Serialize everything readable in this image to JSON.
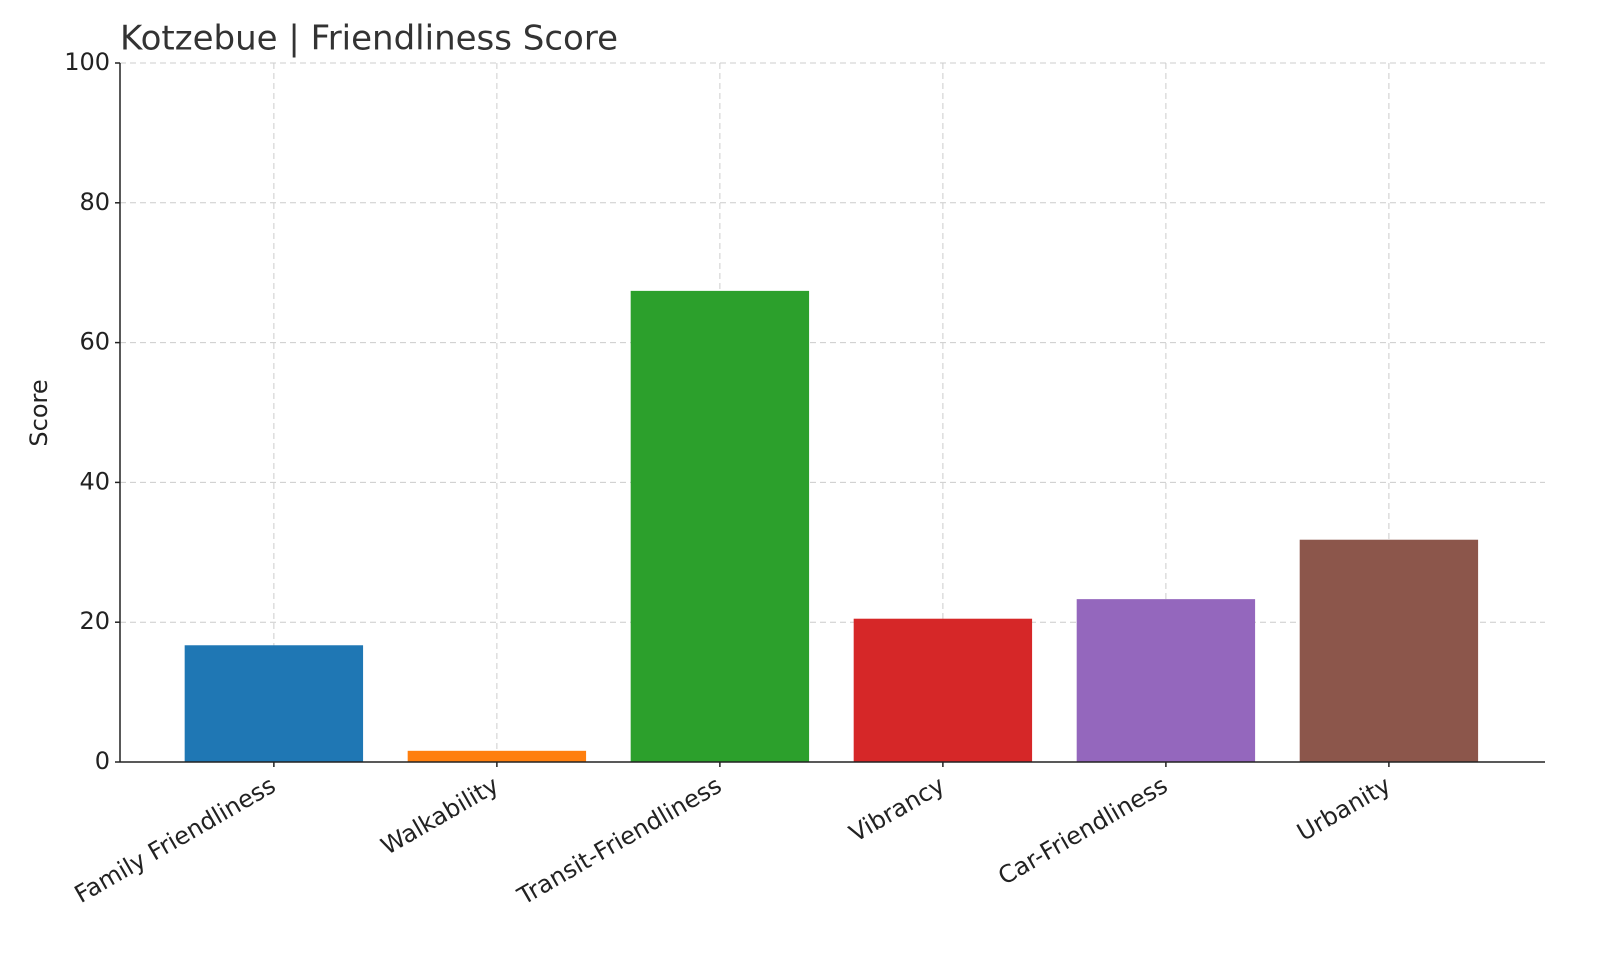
{
  "chart_data": {
    "type": "bar",
    "title": "Kotzebue | Friendliness Score",
    "y_label": "Score",
    "categories": [
      "Family Friendliness",
      "Walkability",
      "Transit-Friendliness",
      "Vibrancy",
      "Car-Friendliness",
      "Urbanity"
    ],
    "values": [
      16.7,
      1.6,
      67.4,
      20.5,
      23.3,
      31.8
    ],
    "colors": [
      "#1f77b4",
      "#ff7f0e",
      "#2ca02c",
      "#d62728",
      "#9467bd",
      "#8c564b"
    ],
    "ylim": [
      0,
      100
    ],
    "yticks": [
      0,
      20,
      40,
      60,
      80,
      100
    ],
    "grid": true
  }
}
